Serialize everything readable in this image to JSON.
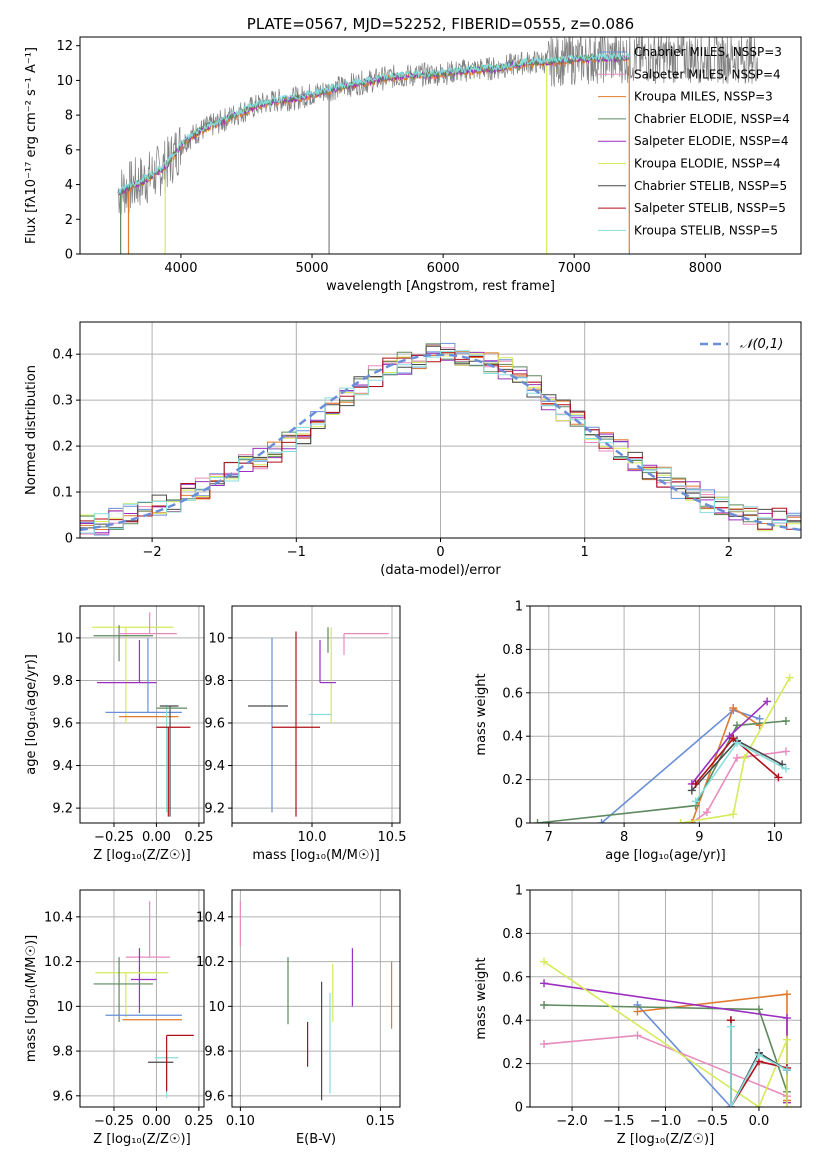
{
  "colors": {
    "chabrier_miles": "#6a8fd8",
    "salpeter_miles": "#e88bbd",
    "kroupa_miles": "#e07b2e",
    "chabrier_elodie": "#5e8a5e",
    "salpeter_elodie": "#9b30c0",
    "kroupa_elodie": "#d6ea5a",
    "chabrier_stelib": "#4a4a4a",
    "salpeter_stelib": "#b0101a",
    "kroupa_stelib": "#88dede",
    "data_gray": "#808080",
    "grid": "#b0b0b0"
  },
  "chart_data": [
    {
      "id": "spectrum",
      "type": "line",
      "title": "PLATE=0567, MJD=52252, FIBERID=0555, z=0.086",
      "xlabel": "wavelength [Angstrom, rest frame]",
      "ylabel": "Flux [fλ10⁻¹⁷ erg cm⁻² s⁻¹ A⁻¹]",
      "xlim": [
        3230,
        8730
      ],
      "ylim": [
        0,
        12.5
      ],
      "xticks": [
        4000,
        5000,
        6000,
        7000,
        8000
      ],
      "yticks": [
        0,
        2,
        4,
        6,
        8,
        10,
        12
      ],
      "grid": false,
      "legend_position": "top-right",
      "legend": [
        "Chabrier MILES, NSSP=3",
        "Salpeter MILES, NSSP=4",
        "Kroupa MILES, NSSP=3",
        "Chabrier ELODIE, NSSP=4",
        "Salpeter ELODIE, NSSP=4",
        "Kroupa ELODIE, NSSP=4",
        "Chabrier STELIB, NSSP=5",
        "Salpeter STELIB, NSSP=5",
        "Kroupa STELIB, NSSP=5"
      ],
      "model_x": [
        3500,
        3600,
        3700,
        3800,
        3900,
        4000,
        4100,
        4200,
        4300,
        4400,
        4500,
        4600,
        4700,
        4800,
        4900,
        5000,
        5200,
        5400,
        5600,
        5800,
        6000,
        6200,
        6400,
        6600,
        6800,
        7000,
        7200,
        7400
      ],
      "model_y": [
        3.5,
        3.8,
        4.2,
        4.6,
        5.2,
        6.3,
        6.9,
        7.3,
        7.6,
        8.0,
        8.3,
        8.6,
        8.8,
        8.9,
        9.0,
        9.2,
        9.6,
        9.9,
        10.2,
        10.3,
        10.4,
        10.6,
        10.7,
        11.0,
        11.1,
        11.2,
        11.3,
        11.3
      ]
    },
    {
      "id": "residuals",
      "type": "step",
      "xlabel": "(data-model)/error",
      "ylabel": "Normed distribution",
      "xlim": [
        -2.5,
        2.5
      ],
      "ylim": [
        0,
        0.47
      ],
      "xticks": [
        -2,
        -1,
        0,
        1,
        2
      ],
      "yticks": [
        0.0,
        0.1,
        0.2,
        0.3,
        0.4
      ],
      "grid": true,
      "legend_position": "top-right",
      "legend": [
        "𝒩(0,1)"
      ],
      "bin_edges": [
        -2.5,
        -2.4,
        -2.3,
        -2.2,
        -2.1,
        -2.0,
        -1.9,
        -1.8,
        -1.7,
        -1.6,
        -1.5,
        -1.4,
        -1.3,
        -1.2,
        -1.1,
        -1.0,
        -0.9,
        -0.8,
        -0.7,
        -0.6,
        -0.5,
        -0.4,
        -0.3,
        -0.2,
        -0.1,
        0.0,
        0.1,
        0.2,
        0.3,
        0.4,
        0.5,
        0.6,
        0.7,
        0.8,
        0.9,
        1.0,
        1.1,
        1.2,
        1.3,
        1.4,
        1.5,
        1.6,
        1.7,
        1.8,
        1.9,
        2.0,
        2.1,
        2.2,
        2.3,
        2.4,
        2.5
      ],
      "base_values": [
        0.03,
        0.03,
        0.04,
        0.05,
        0.06,
        0.07,
        0.08,
        0.1,
        0.11,
        0.12,
        0.14,
        0.16,
        0.17,
        0.19,
        0.21,
        0.23,
        0.26,
        0.29,
        0.31,
        0.33,
        0.35,
        0.37,
        0.38,
        0.39,
        0.4,
        0.4,
        0.4,
        0.39,
        0.38,
        0.37,
        0.35,
        0.33,
        0.3,
        0.28,
        0.26,
        0.23,
        0.21,
        0.19,
        0.17,
        0.15,
        0.13,
        0.11,
        0.1,
        0.08,
        0.07,
        0.06,
        0.05,
        0.04,
        0.04,
        0.03
      ],
      "gaussian": {
        "mean": 0,
        "sigma": 1
      }
    },
    {
      "id": "age_vs_Z",
      "type": "errorbar",
      "xlabel": "Z [log₁₀(Z/Z☉)]",
      "ylabel": "age  [log₁₀(age/yr)]",
      "xlim": [
        -0.45,
        0.28
      ],
      "ylim": [
        9.13,
        10.15
      ],
      "xticks": [
        -0.25,
        0.0,
        0.25
      ],
      "xticklabels": [
        "−0.25",
        "0.00",
        "0.25"
      ],
      "yticks": [
        9.2,
        9.4,
        9.6,
        9.8,
        10.0
      ],
      "grid": true,
      "points": [
        {
          "s": "kroupa_elodie",
          "x": -0.18,
          "xerr": [
            0.2,
            0.28
          ],
          "y": 10.05,
          "yerr": [
            0.45,
            0.0
          ]
        },
        {
          "s": "chabrier_elodie",
          "x": -0.22,
          "xerr": [
            0.15,
            0.2
          ],
          "y": 10.01,
          "yerr": [
            0.12,
            0.05
          ]
        },
        {
          "s": "salpeter_miles",
          "x": -0.04,
          "xerr": [
            0.18,
            0.16
          ],
          "y": 10.02,
          "yerr": [
            0.0,
            0.1
          ]
        },
        {
          "s": "salpeter_elodie",
          "x": -0.1,
          "xerr": [
            0.25,
            0.1
          ],
          "y": 9.79,
          "yerr": [
            0.0,
            0.2
          ]
        },
        {
          "s": "chabrier_miles",
          "x": -0.05,
          "xerr": [
            0.25,
            0.2
          ],
          "y": 9.65,
          "yerr": [
            0.0,
            0.35
          ]
        },
        {
          "s": "kroupa_miles",
          "x": -0.02,
          "xerr": [
            0.2,
            0.15
          ],
          "y": 9.63,
          "yerr": [
            0.0,
            0.0
          ]
        },
        {
          "s": "kroupa_stelib",
          "x": 0.06,
          "xerr": [
            0.04,
            0.05
          ],
          "y": 9.68,
          "yerr": [
            0.5,
            0.0
          ]
        },
        {
          "s": "chabrier_stelib",
          "x": 0.08,
          "xerr": [
            0.06,
            0.05
          ],
          "y": 9.68,
          "yerr": [
            0.52,
            0.0
          ]
        },
        {
          "s": "salpeter_stelib",
          "x": 0.07,
          "xerr": [
            0.07,
            0.13
          ],
          "y": 9.58,
          "yerr": [
            0.42,
            0.0
          ]
        },
        {
          "s": "chabrier_elodie",
          "x": 0.04,
          "xerr": [
            0.04,
            0.14
          ],
          "y": 9.67,
          "yerr": [
            0.0,
            0.0
          ]
        }
      ]
    },
    {
      "id": "age_vs_mass",
      "type": "errorbar",
      "xlabel": "mass [log₁₀(M/M☉)]",
      "ylabel": "",
      "xlim": [
        9.5,
        10.55
      ],
      "ylim": [
        9.13,
        10.15
      ],
      "xticks": [
        9.5,
        10.0,
        10.5
      ],
      "xticklabels": [
        "",
        "10.0",
        "10.5"
      ],
      "yticks": [
        9.2,
        9.4,
        9.6,
        9.8,
        10.0
      ],
      "grid": true,
      "points": [
        {
          "s": "kroupa_elodie",
          "x": 10.12,
          "xerr": [
            0.0,
            0.0
          ],
          "y": 10.05,
          "yerr": [
            0.45,
            0.0
          ]
        },
        {
          "s": "chabrier_elodie",
          "x": 10.1,
          "xerr": [
            0.0,
            0.0
          ],
          "y": 10.05,
          "yerr": [
            0.12,
            0.0
          ]
        },
        {
          "s": "salpeter_miles",
          "x": 10.2,
          "xerr": [
            0.0,
            0.28
          ],
          "y": 10.02,
          "yerr": [
            0.1,
            0.0
          ]
        },
        {
          "s": "salpeter_elodie",
          "x": 10.05,
          "xerr": [
            0.0,
            0.1
          ],
          "y": 9.79,
          "yerr": [
            0.0,
            0.2
          ]
        },
        {
          "s": "chabrier_miles",
          "x": 9.75,
          "xerr": [
            0.0,
            0.0
          ],
          "y": 9.65,
          "yerr": [
            0.47,
            0.35
          ]
        },
        {
          "s": "kroupa_miles",
          "x": 10.15,
          "xerr": [
            0.0,
            0.0
          ],
          "y": 9.63,
          "yerr": [
            0.0,
            0.0
          ]
        },
        {
          "s": "kroupa_stelib",
          "x": 10.0,
          "xerr": [
            0.02,
            0.12
          ],
          "y": 9.64,
          "yerr": [
            0.0,
            0.0
          ]
        },
        {
          "s": "chabrier_stelib",
          "x": 9.85,
          "xerr": [
            0.25,
            0.0
          ],
          "y": 9.68,
          "yerr": [
            0.0,
            0.0
          ]
        },
        {
          "s": "salpeter_stelib",
          "x": 9.9,
          "xerr": [
            0.15,
            0.15
          ],
          "y": 9.58,
          "yerr": [
            0.42,
            0.45
          ]
        }
      ]
    },
    {
      "id": "massweight_vs_age",
      "type": "line",
      "xlabel": "age  [log₁₀(age/yr)]",
      "ylabel": "mass weight",
      "xlim": [
        6.75,
        10.35
      ],
      "ylim": [
        0,
        1
      ],
      "xticks": [
        7,
        8,
        9,
        10
      ],
      "yticks": [
        0.0,
        0.2,
        0.4,
        0.6,
        0.8,
        1.0
      ],
      "grid": true,
      "series": [
        {
          "s": "chabrier_miles",
          "x": [
            7.7,
            9.45,
            9.8
          ],
          "y": [
            0.0,
            0.52,
            0.48
          ]
        },
        {
          "s": "salpeter_miles",
          "x": [
            8.9,
            9.1,
            9.5,
            10.15
          ],
          "y": [
            0.0,
            0.05,
            0.3,
            0.33
          ]
        },
        {
          "s": "kroupa_miles",
          "x": [
            8.9,
            9.45,
            9.8
          ],
          "y": [
            0.0,
            0.53,
            0.45
          ]
        },
        {
          "s": "chabrier_elodie",
          "x": [
            6.85,
            8.95,
            9.5,
            10.15
          ],
          "y": [
            0.0,
            0.08,
            0.45,
            0.47
          ]
        },
        {
          "s": "salpeter_elodie",
          "x": [
            8.9,
            9.4,
            9.9
          ],
          "y": [
            0.18,
            0.4,
            0.56
          ]
        },
        {
          "s": "kroupa_elodie",
          "x": [
            8.75,
            9.45,
            9.6,
            10.2
          ],
          "y": [
            0.0,
            0.04,
            0.3,
            0.67
          ]
        },
        {
          "s": "chabrier_stelib",
          "x": [
            8.9,
            9.5,
            10.1
          ],
          "y": [
            0.15,
            0.38,
            0.27
          ]
        },
        {
          "s": "salpeter_stelib",
          "x": [
            8.95,
            9.45,
            10.05
          ],
          "y": [
            0.18,
            0.39,
            0.21
          ]
        },
        {
          "s": "kroupa_stelib",
          "x": [
            8.95,
            9.5,
            10.15
          ],
          "y": [
            0.1,
            0.37,
            0.25
          ]
        }
      ]
    },
    {
      "id": "mass_vs_Z",
      "type": "errorbar",
      "xlabel": "Z [log₁₀(Z/Z☉)]",
      "ylabel": "mass [log₁₀(M/M☉)]",
      "xlim": [
        -0.45,
        0.28
      ],
      "ylim": [
        9.55,
        10.52
      ],
      "xticks": [
        -0.25,
        0.0,
        0.25
      ],
      "xticklabels": [
        "−0.25",
        "0.00",
        "0.25"
      ],
      "yticks": [
        9.6,
        9.8,
        10.0,
        10.2,
        10.4
      ],
      "grid": true,
      "points": [
        {
          "s": "salpeter_miles",
          "x": -0.04,
          "xerr": [
            0.14,
            0.12
          ],
          "y": 10.22,
          "yerr": [
            0.0,
            0.25
          ]
        },
        {
          "s": "salpeter_elodie",
          "x": -0.1,
          "xerr": [
            0.05,
            0.1
          ],
          "y": 10.12,
          "yerr": [
            0.15,
            0.14
          ]
        },
        {
          "s": "kroupa_elodie",
          "x": -0.18,
          "xerr": [
            0.18,
            0.25
          ],
          "y": 10.15,
          "yerr": [
            0.2,
            0.0
          ]
        },
        {
          "s": "chabrier_elodie",
          "x": -0.22,
          "xerr": [
            0.15,
            0.2
          ],
          "y": 10.1,
          "yerr": [
            0.17,
            0.12
          ]
        },
        {
          "s": "chabrier_miles",
          "x": -0.05,
          "xerr": [
            0.25,
            0.2
          ],
          "y": 9.96,
          "yerr": [
            0.0,
            0.0
          ]
        },
        {
          "s": "kroupa_miles",
          "x": -0.05,
          "xerr": [
            0.15,
            0.2
          ],
          "y": 9.94,
          "yerr": [
            0.0,
            0.0
          ]
        },
        {
          "s": "kroupa_stelib",
          "x": 0.06,
          "xerr": [
            0.07,
            0.07
          ],
          "y": 9.77,
          "yerr": [
            0.18,
            0.0
          ]
        },
        {
          "s": "chabrier_stelib",
          "x": 0.05,
          "xerr": [
            0.1,
            0.05
          ],
          "y": 9.75,
          "yerr": [
            0.0,
            0.0
          ]
        },
        {
          "s": "salpeter_stelib",
          "x": 0.06,
          "xerr": [
            0.0,
            0.16
          ],
          "y": 9.87,
          "yerr": [
            0.25,
            0.0
          ]
        }
      ]
    },
    {
      "id": "mass_vs_EBV",
      "type": "errorbar",
      "xlabel": "E(B-V)",
      "ylabel": "",
      "xlim": [
        0.097,
        0.157
      ],
      "ylim": [
        9.55,
        10.52
      ],
      "xticks": [
        0.1,
        0.15
      ],
      "xticklabels": [
        "0.10",
        "0.15"
      ],
      "yticks": [
        9.6,
        9.8,
        10.0,
        10.2,
        10.4
      ],
      "grid": true,
      "points": [
        {
          "s": "salpeter_miles",
          "x": 0.1,
          "y": 10.27,
          "yerr": [
            0.0,
            0.2
          ]
        },
        {
          "s": "chabrier_elodie",
          "x": 0.117,
          "y": 10.07,
          "yerr": [
            0.15,
            0.15
          ]
        },
        {
          "s": "salpeter_stelib",
          "x": 0.124,
          "y": 9.93,
          "yerr": [
            0.2,
            0.0
          ]
        },
        {
          "s": "chabrier_stelib",
          "x": 0.129,
          "y": 9.84,
          "yerr": [
            0.26,
            0.27
          ]
        },
        {
          "s": "kroupa_stelib",
          "x": 0.132,
          "y": 9.86,
          "yerr": [
            0.25,
            0.2
          ]
        },
        {
          "s": "kroupa_elodie",
          "x": 0.133,
          "y": 10.13,
          "yerr": [
            0.2,
            0.06
          ]
        },
        {
          "s": "salpeter_elodie",
          "x": 0.14,
          "y": 10.13,
          "yerr": [
            0.13,
            0.13
          ]
        },
        {
          "s": "kroupa_miles",
          "x": 0.154,
          "y": 10.05,
          "yerr": [
            0.15,
            0.15
          ]
        }
      ]
    },
    {
      "id": "massweight_vs_Z",
      "type": "line",
      "xlabel": "Z [log₁₀(Z/Z☉)]",
      "ylabel": "mass weight",
      "xlim": [
        -2.45,
        0.45
      ],
      "ylim": [
        0,
        1
      ],
      "xticks": [
        -2.0,
        -1.5,
        -1.0,
        -0.5,
        0.0
      ],
      "xticklabels": [
        "−2.0",
        "−1.5",
        "−1.0",
        "−0.5",
        "0.0"
      ],
      "yticks": [
        0.0,
        0.2,
        0.4,
        0.6,
        0.8,
        1.0
      ],
      "grid": true,
      "series": [
        {
          "s": "chabrier_miles",
          "x": [
            -1.3,
            -0.3,
            0.0,
            0.3
          ],
          "y": [
            0.47,
            0.0,
            0.25,
            0.17
          ]
        },
        {
          "s": "salpeter_miles",
          "x": [
            -2.3,
            -1.3,
            0.3
          ],
          "y": [
            0.29,
            0.33,
            0.05
          ]
        },
        {
          "s": "kroupa_miles",
          "x": [
            -1.3,
            0.3,
            0.3
          ],
          "y": [
            0.44,
            0.52,
            0.03
          ]
        },
        {
          "s": "chabrier_elodie",
          "x": [
            -2.3,
            0.0,
            0.3
          ],
          "y": [
            0.47,
            0.45,
            0.07
          ]
        },
        {
          "s": "salpeter_elodie",
          "x": [
            -2.3,
            0.3,
            0.3
          ],
          "y": [
            0.57,
            0.41,
            0.02
          ]
        },
        {
          "s": "kroupa_elodie",
          "x": [
            -2.3,
            0.0,
            0.3,
            0.3
          ],
          "y": [
            0.67,
            0.0,
            0.31,
            0.0
          ]
        },
        {
          "s": "chabrier_stelib",
          "x": [
            -0.3,
            -0.3,
            0.0,
            0.3
          ],
          "y": [
            0.4,
            0.0,
            0.25,
            0.17
          ]
        },
        {
          "s": "salpeter_stelib",
          "x": [
            -0.3,
            -0.3,
            0.0,
            0.3
          ],
          "y": [
            0.4,
            0.0,
            0.21,
            0.18
          ]
        },
        {
          "s": "kroupa_stelib",
          "x": [
            -0.3,
            -0.3,
            0.0,
            0.3
          ],
          "y": [
            0.37,
            0.0,
            0.24,
            0.17
          ]
        }
      ]
    }
  ]
}
